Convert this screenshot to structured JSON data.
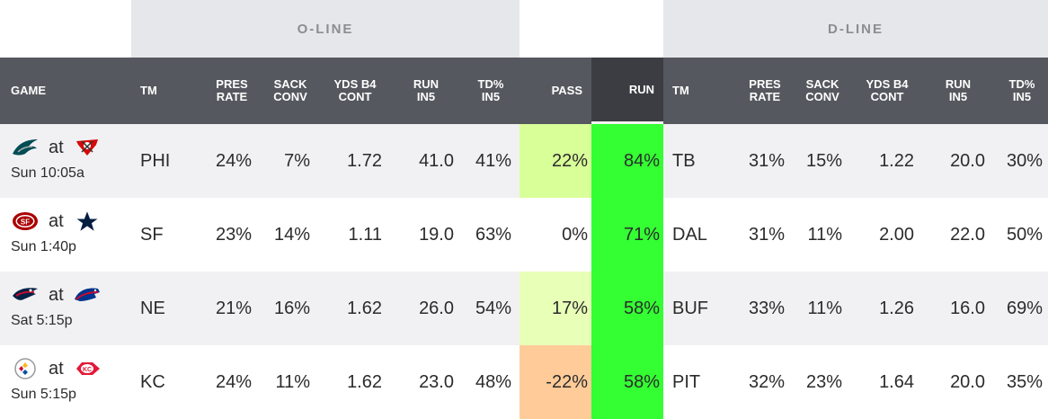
{
  "groups": {
    "oline": "O-LINE",
    "dline": "D-LINE"
  },
  "headers": {
    "game": "GAME",
    "tm": "TM",
    "pres": [
      "PRES",
      "RATE"
    ],
    "sack": [
      "SACK",
      "CONV"
    ],
    "yds": [
      "YDS B4",
      "CONT"
    ],
    "run": [
      "RUN",
      "IN5"
    ],
    "td": [
      "TD%",
      "IN5"
    ],
    "pass": "PASS",
    "runcol": "RUN",
    "tm2": "TM"
  },
  "colors": {
    "run_fill": "#33ff33",
    "pass_22": "#d9ff99",
    "pass_0": "#ffffff",
    "pass_17": "#e8ffb8",
    "pass_neg22": "#ffcc99"
  },
  "rows": [
    {
      "away_logo": "eagles-logo",
      "home_logo": "buccaneers-logo",
      "at": "at",
      "time": "Sun 10:05a",
      "o_tm": "PHI",
      "o_pres": "24%",
      "o_sack": "7%",
      "o_yds": "1.72",
      "o_run": "41.0",
      "o_td": "41%",
      "pass": "22%",
      "run": "84%",
      "d_tm": "TB",
      "d_pres": "31%",
      "d_sack": "15%",
      "d_yds": "1.22",
      "d_run": "20.0",
      "d_td": "30%"
    },
    {
      "away_logo": "49ers-logo",
      "home_logo": "cowboys-logo",
      "at": "at",
      "time": "Sun 1:40p",
      "o_tm": "SF",
      "o_pres": "23%",
      "o_sack": "14%",
      "o_yds": "1.11",
      "o_run": "19.0",
      "o_td": "63%",
      "pass": "0%",
      "run": "71%",
      "d_tm": "DAL",
      "d_pres": "31%",
      "d_sack": "11%",
      "d_yds": "2.00",
      "d_run": "22.0",
      "d_td": "50%"
    },
    {
      "away_logo": "patriots-logo",
      "home_logo": "bills-logo",
      "at": "at",
      "time": "Sat 5:15p",
      "o_tm": "NE",
      "o_pres": "21%",
      "o_sack": "16%",
      "o_yds": "1.62",
      "o_run": "26.0",
      "o_td": "54%",
      "pass": "17%",
      "run": "58%",
      "d_tm": "BUF",
      "d_pres": "33%",
      "d_sack": "11%",
      "d_yds": "1.26",
      "d_run": "16.0",
      "d_td": "69%"
    },
    {
      "away_logo": "steelers-logo",
      "home_logo": "chiefs-logo",
      "at": "at",
      "time": "Sun 5:15p",
      "o_tm": "KC",
      "o_pres": "24%",
      "o_sack": "11%",
      "o_yds": "1.62",
      "o_run": "23.0",
      "o_td": "48%",
      "pass": "-22%",
      "run": "58%",
      "d_tm": "PIT",
      "d_pres": "32%",
      "d_sack": "23%",
      "d_yds": "1.64",
      "d_run": "20.0",
      "d_td": "35%"
    }
  ]
}
